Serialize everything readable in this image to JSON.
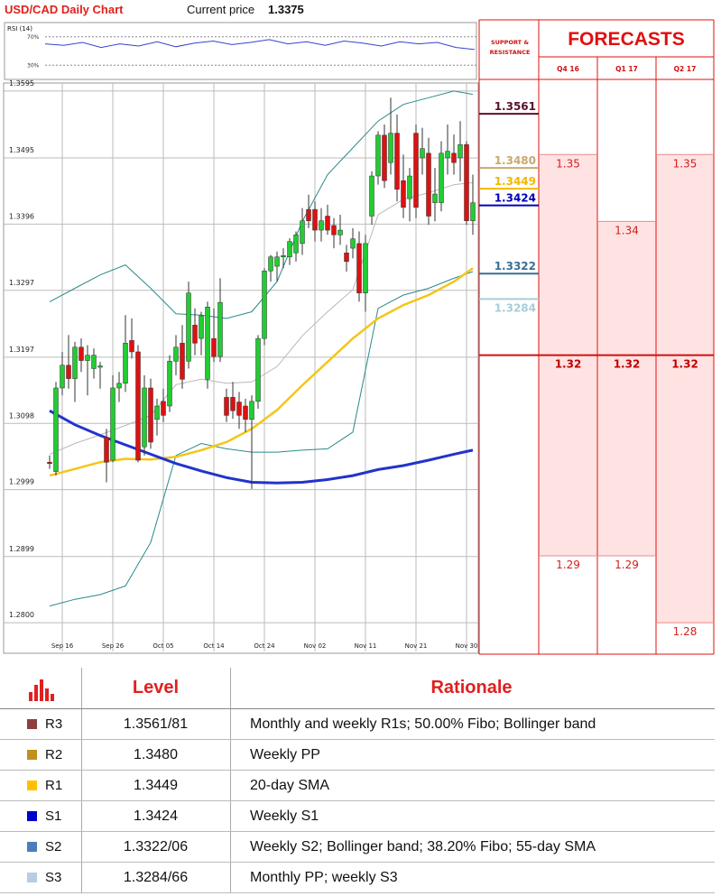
{
  "header": {
    "title": "USD/CAD Daily Chart",
    "current_price_label": "Current price",
    "current_price": 1.3375
  },
  "chart_data": {
    "type": "candlestick",
    "categories": [
      null,
      null,
      "Sep 16",
      null,
      null,
      null,
      null,
      null,
      null,
      null,
      "Sep 26",
      null,
      null,
      null,
      null,
      null,
      null,
      null,
      "Oct 05",
      null,
      null,
      null,
      null,
      null,
      null,
      null,
      "Oct 14",
      null,
      null,
      null,
      null,
      null,
      null,
      null,
      "Oct 24",
      null,
      null,
      null,
      null,
      null,
      null,
      null,
      "Nov 02",
      null,
      null,
      null,
      null,
      null,
      null,
      null,
      "Nov 11",
      null,
      null,
      null,
      null,
      null,
      null,
      null,
      "Nov 21",
      null,
      null,
      null,
      null,
      null,
      null,
      null,
      "Nov 30",
      null
    ],
    "ohlc": [
      [
        1.304,
        1.305,
        1.303,
        1.3038
      ],
      [
        1.3026,
        1.316,
        1.302,
        1.3151
      ],
      [
        1.3151,
        1.3205,
        1.314,
        1.3185
      ],
      [
        1.3185,
        1.323,
        1.315,
        1.3165
      ],
      [
        1.3165,
        1.322,
        1.313,
        1.3212
      ],
      [
        1.3212,
        1.3225,
        1.3175,
        1.3192
      ],
      [
        1.3192,
        1.3215,
        1.314,
        1.32
      ],
      [
        1.318,
        1.321,
        1.3165,
        1.32
      ],
      [
        1.3182,
        1.319,
        1.315,
        1.3184
      ],
      [
        1.3077,
        1.309,
        1.301,
        1.304
      ],
      [
        1.3043,
        1.317,
        1.304,
        1.3151
      ],
      [
        1.3151,
        1.3175,
        1.313,
        1.3158
      ],
      [
        1.3158,
        1.326,
        1.3145,
        1.3218
      ],
      [
        1.3222,
        1.3255,
        1.3195,
        1.3205
      ],
      [
        1.3205,
        1.3215,
        1.304,
        1.3043
      ],
      [
        1.3063,
        1.317,
        1.305,
        1.3151
      ],
      [
        1.3151,
        1.3165,
        1.306,
        1.307
      ],
      [
        1.3104,
        1.3135,
        1.308,
        1.3124
      ],
      [
        1.3131,
        1.315,
        1.31,
        1.311
      ],
      [
        1.3124,
        1.32,
        1.3115,
        1.3191
      ],
      [
        1.3191,
        1.323,
        1.317,
        1.3212
      ],
      [
        1.3218,
        1.3245,
        1.315,
        1.3164
      ],
      [
        1.3191,
        1.331,
        1.318,
        1.3293
      ],
      [
        1.3245,
        1.327,
        1.32,
        1.3218
      ],
      [
        1.3225,
        1.3265,
        1.32,
        1.3259
      ],
      [
        1.3164,
        1.328,
        1.315,
        1.3272
      ],
      [
        1.3225,
        1.327,
        1.319,
        1.3198
      ],
      [
        1.3198,
        1.3315,
        1.319,
        1.3279
      ],
      [
        1.3137,
        1.315,
        1.31,
        1.311
      ],
      [
        1.3137,
        1.316,
        1.3105,
        1.3117
      ],
      [
        1.313,
        1.3145,
        1.309,
        1.311
      ],
      [
        1.3124,
        1.3135,
        1.3085,
        1.3104
      ],
      [
        1.3104,
        1.314,
        1.3,
        1.3131
      ],
      [
        1.3131,
        1.323,
        1.312,
        1.3225
      ],
      [
        1.3225,
        1.333,
        1.3215,
        1.3326
      ],
      [
        1.3326,
        1.335,
        1.331,
        1.3347
      ],
      [
        1.3333,
        1.3355,
        1.331,
        1.3347
      ],
      [
        1.3347,
        1.336,
        1.333,
        1.3349
      ],
      [
        1.3347,
        1.3375,
        1.3335,
        1.337
      ],
      [
        1.3353,
        1.3385,
        1.334,
        1.338
      ],
      [
        1.3367,
        1.342,
        1.335,
        1.3401
      ],
      [
        1.3418,
        1.344,
        1.339,
        1.3401
      ],
      [
        1.3418,
        1.343,
        1.337,
        1.3387
      ],
      [
        1.3387,
        1.342,
        1.337,
        1.3401
      ],
      [
        1.3408,
        1.3425,
        1.338,
        1.3387
      ],
      [
        1.3394,
        1.3405,
        1.336,
        1.338
      ],
      [
        1.338,
        1.341,
        1.3365,
        1.3387
      ],
      [
        1.3353,
        1.3365,
        1.3325,
        1.334
      ],
      [
        1.336,
        1.339,
        1.3345,
        1.3374
      ],
      [
        1.3367,
        1.3385,
        1.328,
        1.3293
      ],
      [
        1.3293,
        1.338,
        1.3265,
        1.3367
      ],
      [
        1.3408,
        1.3475,
        1.3395,
        1.3468
      ],
      [
        1.3468,
        1.3535,
        1.3455,
        1.3529
      ],
      [
        1.3529,
        1.3545,
        1.345,
        1.3461
      ],
      [
        1.3488,
        1.3585,
        1.347,
        1.3532
      ],
      [
        1.3532,
        1.356,
        1.343,
        1.3448
      ],
      [
        1.3461,
        1.35,
        1.3405,
        1.3421
      ],
      [
        1.3434,
        1.348,
        1.34,
        1.3468
      ],
      [
        1.3532,
        1.3545,
        1.3405,
        1.3421
      ],
      [
        1.3495,
        1.354,
        1.347,
        1.3509
      ],
      [
        1.3502,
        1.3525,
        1.3395,
        1.3408
      ],
      [
        1.3428,
        1.348,
        1.34,
        1.3441
      ],
      [
        1.3428,
        1.352,
        1.3415,
        1.3502
      ],
      [
        1.3495,
        1.3545,
        1.347,
        1.3505
      ],
      [
        1.3502,
        1.353,
        1.347,
        1.3488
      ],
      [
        1.3495,
        1.355,
        1.346,
        1.3515
      ],
      [
        1.3515,
        1.352,
        1.3395,
        1.3401
      ],
      [
        1.3401,
        1.347,
        1.338,
        1.3428
      ]
    ],
    "up_color": "#22cc33",
    "down_color": "#dd1111",
    "line_x": [
      0,
      4,
      8,
      12,
      16,
      20,
      24,
      28,
      32,
      36,
      40,
      44,
      48,
      52,
      56,
      60,
      64,
      67
    ],
    "lines": [
      {
        "color": "#b8b8b8",
        "width": 1,
        "values": [
          1.3052,
          1.3068,
          1.3081,
          1.3095,
          1.311,
          1.3156,
          1.3164,
          1.3158,
          1.316,
          1.3183,
          1.3229,
          1.3265,
          1.3298,
          1.341,
          1.3433,
          1.3443,
          1.3455,
          1.3458
        ]
      },
      {
        "color": "#2a8a8a",
        "width": 1,
        "values": [
          1.328,
          1.33,
          1.332,
          1.3335,
          1.33,
          1.3262,
          1.326,
          1.3255,
          1.3265,
          1.331,
          1.34,
          1.347,
          1.351,
          1.355,
          1.3575,
          1.3585,
          1.3595,
          1.359
        ]
      },
      {
        "color": "#2a8a8a",
        "width": 1,
        "values": [
          1.2825,
          1.2835,
          1.2842,
          1.2855,
          1.292,
          1.305,
          1.3068,
          1.306,
          1.3055,
          1.3055,
          1.3058,
          1.306,
          1.3085,
          1.327,
          1.329,
          1.33,
          1.3315,
          1.3325
        ]
      },
      {
        "color": "#f5c518",
        "width": 2.5,
        "values": [
          1.302,
          1.303,
          1.304,
          1.3045,
          1.3044,
          1.3048,
          1.3058,
          1.307,
          1.309,
          1.3118,
          1.3155,
          1.319,
          1.3225,
          1.3255,
          1.3275,
          1.329,
          1.331,
          1.333
        ]
      },
      {
        "color": "#2233cc",
        "width": 3,
        "values": [
          1.3117,
          1.3096,
          1.308,
          1.3066,
          1.3052,
          1.3038,
          1.3027,
          1.3017,
          1.301,
          1.3009,
          1.301,
          1.3014,
          1.302,
          1.3029,
          1.3035,
          1.3043,
          1.3052,
          1.3058
        ]
      }
    ],
    "ylim": [
      1.2757,
      1.3607
    ],
    "yticks": [
      {
        "value": 1.28,
        "label": "1.2800"
      },
      1.2899,
      1.2999,
      1.3098,
      1.3197,
      1.3297,
      1.3396,
      1.3495,
      1.3595
    ],
    "grid": true,
    "rsi": {
      "title": "RSI (14)",
      "color": "#3344cc",
      "ylim": [
        10,
        90
      ],
      "yticks": [
        {
          "value": 70,
          "label": "70%"
        },
        {
          "value": 30,
          "label": "30%"
        }
      ],
      "values": [
        60,
        58,
        62,
        55,
        60,
        57,
        63,
        56,
        61,
        64,
        59,
        62,
        66,
        60,
        63,
        58,
        64,
        61,
        57,
        63,
        60,
        62,
        55,
        52
      ]
    }
  },
  "forecasts": {
    "title": "FORECASTS",
    "sr_label": "SUPPORT & RESISTANCE",
    "levels": [
      {
        "value": 1.3561,
        "color": "#5a0f2e"
      },
      {
        "value": 1.348,
        "label": "1.3480",
        "color": "#c8a96e"
      },
      {
        "value": 1.3449,
        "color": "#f0b800"
      },
      {
        "value": 1.3424,
        "color": "#0000bb"
      },
      {
        "value": 1.3322,
        "color": "#3a6f95"
      },
      {
        "value": 1.3284,
        "color": "#a9cdd6"
      }
    ],
    "columns": [
      {
        "label": "Q4 16",
        "high": 1.35,
        "mid": 1.32,
        "low": 1.29
      },
      {
        "label": "Q1 17",
        "high": 1.34,
        "mid": 1.32,
        "low": 1.29
      },
      {
        "label": "Q2 17",
        "high": 1.35,
        "mid": 1.32,
        "low": 1.28
      }
    ]
  },
  "table": {
    "headers": [
      "Level",
      "Rationale"
    ],
    "rows": [
      {
        "name": "R3",
        "color": "#8e3f3f",
        "level": "1.3561/81",
        "rationale": "Monthly and weekly R1s; 50.00% Fibo; Bollinger band"
      },
      {
        "name": "R2",
        "color": "#c09020",
        "level": "1.3480",
        "rationale": "Weekly PP"
      },
      {
        "name": "R1",
        "color": "#ffc000",
        "level": "1.3449",
        "rationale": "20-day SMA"
      },
      {
        "name": "S1",
        "color": "#0000cc",
        "level": "1.3424",
        "rationale": "Weekly S1"
      },
      {
        "name": "S2",
        "color": "#4a7ebb",
        "level": "1.3322/06",
        "rationale": "Weekly S2; Bollinger band; 38.20% Fibo; 55-day SMA"
      },
      {
        "name": "S3",
        "color": "#b8cce4",
        "level": "1.3284/66",
        "rationale": "Monthly PP; weekly S3"
      }
    ]
  }
}
